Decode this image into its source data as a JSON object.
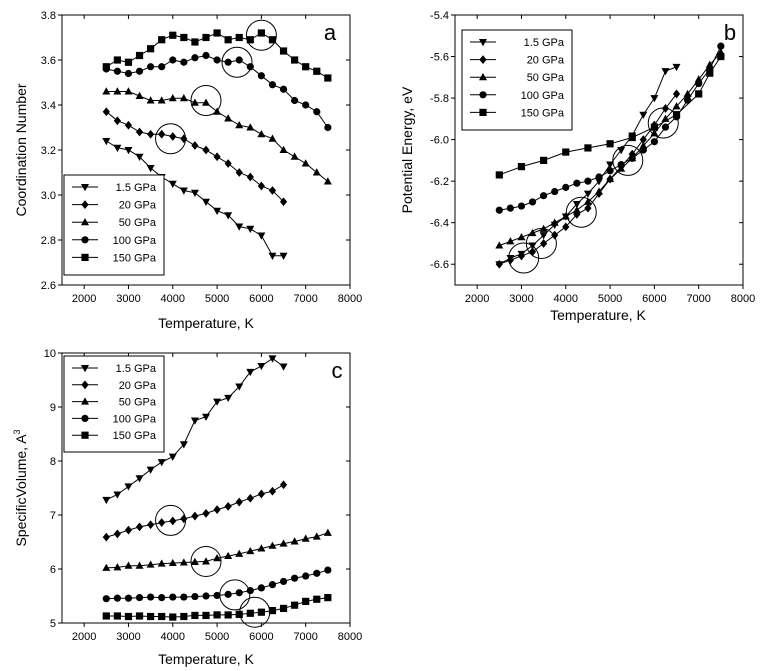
{
  "chart_data": [
    {
      "panel": "a",
      "type": "line",
      "xlabel": "Temperature, K",
      "ylabel": "Coordination Number",
      "xlim": [
        1500,
        8000
      ],
      "ylim": [
        2.6,
        3.8
      ],
      "xticks": [
        2000,
        3000,
        4000,
        5000,
        6000,
        7000,
        8000
      ],
      "yticks": [
        2.6,
        2.8,
        3.0,
        3.2,
        3.4,
        3.6,
        3.8
      ],
      "ytick_decimals": 1,
      "legend_position": "bottom-left",
      "series": [
        {
          "name": "1.5 GPa",
          "marker": "triangle-down",
          "x": [
            2500,
            2750,
            3000,
            3250,
            3500,
            3750,
            4000,
            4250,
            4500,
            4750,
            5000,
            5250,
            5500,
            5750,
            6000,
            6250,
            6500
          ],
          "y": [
            3.24,
            3.21,
            3.2,
            3.17,
            3.12,
            3.08,
            3.05,
            3.02,
            3.01,
            2.97,
            2.93,
            2.91,
            2.86,
            2.85,
            2.82,
            2.73,
            2.73
          ]
        },
        {
          "name": "20 GPa",
          "marker": "diamond",
          "x": [
            2500,
            2750,
            3000,
            3250,
            3500,
            3750,
            4000,
            4250,
            4500,
            4750,
            5000,
            5250,
            5500,
            5750,
            6000,
            6250,
            6500
          ],
          "y": [
            3.37,
            3.33,
            3.31,
            3.28,
            3.27,
            3.27,
            3.26,
            3.25,
            3.22,
            3.2,
            3.17,
            3.14,
            3.1,
            3.08,
            3.04,
            3.02,
            2.97
          ]
        },
        {
          "name": "50 GPa",
          "marker": "triangle-up",
          "x": [
            2500,
            2750,
            3000,
            3250,
            3500,
            3750,
            4000,
            4250,
            4500,
            4750,
            5000,
            5250,
            5500,
            5750,
            6000,
            6250,
            6500,
            6750,
            7000,
            7250,
            7500
          ],
          "y": [
            3.46,
            3.46,
            3.46,
            3.44,
            3.42,
            3.42,
            3.43,
            3.43,
            3.41,
            3.41,
            3.37,
            3.34,
            3.31,
            3.3,
            3.27,
            3.25,
            3.2,
            3.17,
            3.14,
            3.1,
            3.06
          ]
        },
        {
          "name": "100 GPa",
          "marker": "circle",
          "x": [
            2500,
            2750,
            3000,
            3250,
            3500,
            3750,
            4000,
            4250,
            4500,
            4750,
            5000,
            5250,
            5500,
            5750,
            6000,
            6250,
            6500,
            6750,
            7000,
            7250,
            7500
          ],
          "y": [
            3.56,
            3.55,
            3.54,
            3.55,
            3.57,
            3.57,
            3.6,
            3.59,
            3.61,
            3.62,
            3.6,
            3.59,
            3.6,
            3.57,
            3.53,
            3.49,
            3.47,
            3.42,
            3.4,
            3.37,
            3.3
          ]
        },
        {
          "name": "150 GPa",
          "marker": "square",
          "x": [
            2500,
            2750,
            3000,
            3250,
            3500,
            3750,
            4000,
            4250,
            4500,
            4750,
            5000,
            5250,
            5500,
            5750,
            6000,
            6250,
            6500,
            6750,
            7000,
            7250,
            7500
          ],
          "y": [
            3.57,
            3.6,
            3.59,
            3.62,
            3.65,
            3.69,
            3.71,
            3.7,
            3.68,
            3.7,
            3.72,
            3.69,
            3.7,
            3.69,
            3.72,
            3.69,
            3.64,
            3.6,
            3.57,
            3.55,
            3.52
          ]
        }
      ],
      "circled_points": [
        {
          "x": 3950,
          "y": 3.25
        },
        {
          "x": 4750,
          "y": 3.42
        },
        {
          "x": 5450,
          "y": 3.59
        },
        {
          "x": 6000,
          "y": 3.71
        }
      ]
    },
    {
      "panel": "b",
      "type": "line",
      "xlabel": "Temperature, K",
      "ylabel": "Potential Energy, eV",
      "xlim": [
        1500,
        8000
      ],
      "ylim": [
        -6.7,
        -5.4
      ],
      "xticks": [
        2000,
        3000,
        4000,
        5000,
        6000,
        7000,
        8000
      ],
      "yticks": [
        -6.6,
        -6.4,
        -6.2,
        -6.0,
        -5.8,
        -5.6,
        -5.4
      ],
      "ytick_decimals": 1,
      "legend_position": "top-left",
      "series": [
        {
          "name": "1.5 GPa",
          "marker": "triangle-down",
          "x": [
            2500,
            2750,
            3000,
            3250,
            3500,
            3750,
            4000,
            4250,
            4500,
            4750,
            5000,
            5250,
            5500,
            5750,
            6000,
            6250,
            6500
          ],
          "y": [
            -6.6,
            -6.57,
            -6.55,
            -6.51,
            -6.46,
            -6.41,
            -6.37,
            -6.31,
            -6.26,
            -6.2,
            -6.12,
            -6.05,
            -5.98,
            -5.88,
            -5.8,
            -5.67,
            -5.65
          ]
        },
        {
          "name": "20 GPa",
          "marker": "diamond",
          "x": [
            2500,
            2750,
            3000,
            3250,
            3500,
            3750,
            4000,
            4250,
            4500,
            4750,
            5000,
            5250,
            5500,
            5750,
            6000,
            6250,
            6500
          ],
          "y": [
            -6.6,
            -6.58,
            -6.56,
            -6.54,
            -6.5,
            -6.46,
            -6.42,
            -6.36,
            -6.33,
            -6.26,
            -6.19,
            -6.13,
            -6.07,
            -6.0,
            -5.93,
            -5.85,
            -5.78
          ]
        },
        {
          "name": "50 GPa",
          "marker": "triangle-up",
          "x": [
            2500,
            2750,
            3000,
            3250,
            3500,
            3750,
            4000,
            4250,
            4500,
            4750,
            5000,
            5250,
            5500,
            5750,
            6000,
            6250,
            6500,
            6750,
            7000,
            7250,
            7500
          ],
          "y": [
            -6.51,
            -6.49,
            -6.47,
            -6.45,
            -6.43,
            -6.4,
            -6.37,
            -6.34,
            -6.3,
            -6.25,
            -6.19,
            -6.14,
            -6.09,
            -6.03,
            -5.97,
            -5.9,
            -5.84,
            -5.78,
            -5.71,
            -5.64,
            -5.58
          ]
        },
        {
          "name": "100 GPa",
          "marker": "circle",
          "x": [
            2500,
            2750,
            3000,
            3250,
            3500,
            3750,
            4000,
            4250,
            4500,
            4750,
            5000,
            5250,
            5500,
            5750,
            6000,
            6250,
            6500,
            6750,
            7000,
            7250,
            7500
          ],
          "y": [
            -6.34,
            -6.33,
            -6.32,
            -6.3,
            -6.27,
            -6.25,
            -6.23,
            -6.21,
            -6.2,
            -6.18,
            -6.15,
            -6.12,
            -6.09,
            -6.05,
            -6.01,
            -5.94,
            -5.89,
            -5.81,
            -5.73,
            -5.66,
            -5.55
          ]
        },
        {
          "name": "150 GPa",
          "marker": "square",
          "x": [
            2500,
            3000,
            3500,
            4000,
            4500,
            5000,
            5500,
            6000,
            6500,
            7000,
            7250,
            7500
          ],
          "y": [
            -6.17,
            -6.13,
            -6.1,
            -6.06,
            -6.04,
            -6.02,
            -5.99,
            -5.94,
            -5.88,
            -5.78,
            -5.68,
            -5.6
          ]
        }
      ],
      "circled_points": [
        {
          "x": 3050,
          "y": -6.57
        },
        {
          "x": 3450,
          "y": -6.5
        },
        {
          "x": 4350,
          "y": -6.35
        },
        {
          "x": 5400,
          "y": -6.1
        },
        {
          "x": 6200,
          "y": -5.92
        }
      ]
    },
    {
      "panel": "c",
      "type": "line",
      "xlabel": "Temperature, K",
      "ylabel": "SpecificVolume, A",
      "ylabel_superscript": "3",
      "xlim": [
        1500,
        8000
      ],
      "ylim": [
        5,
        10
      ],
      "xticks": [
        2000,
        3000,
        4000,
        5000,
        6000,
        7000,
        8000
      ],
      "yticks": [
        5,
        6,
        7,
        8,
        9,
        10
      ],
      "ytick_decimals": 0,
      "legend_position": "top-left",
      "series": [
        {
          "name": "1.5 GPa",
          "marker": "triangle-down",
          "x": [
            2500,
            2750,
            3000,
            3250,
            3500,
            3750,
            4000,
            4250,
            4500,
            4750,
            5000,
            5250,
            5500,
            5750,
            6000,
            6250,
            6500
          ],
          "y": [
            7.28,
            7.38,
            7.53,
            7.68,
            7.84,
            7.98,
            8.08,
            8.31,
            8.75,
            8.82,
            9.1,
            9.17,
            9.38,
            9.65,
            9.76,
            9.9,
            9.75
          ]
        },
        {
          "name": "20 GPa",
          "marker": "diamond",
          "x": [
            2500,
            2750,
            3000,
            3250,
            3500,
            3750,
            4000,
            4250,
            4500,
            4750,
            5000,
            5250,
            5500,
            5750,
            6000,
            6250,
            6500
          ],
          "y": [
            6.59,
            6.65,
            6.72,
            6.78,
            6.82,
            6.86,
            6.89,
            6.93,
            6.98,
            7.03,
            7.1,
            7.16,
            7.24,
            7.31,
            7.39,
            7.44,
            7.56
          ]
        },
        {
          "name": "50 GPa",
          "marker": "triangle-up",
          "x": [
            2500,
            2750,
            3000,
            3250,
            3500,
            3750,
            4000,
            4250,
            4500,
            4750,
            5000,
            5250,
            5500,
            5750,
            6000,
            6250,
            6500,
            6750,
            7000,
            7250,
            7500
          ],
          "y": [
            6.02,
            6.03,
            6.06,
            6.06,
            6.08,
            6.1,
            6.11,
            6.12,
            6.13,
            6.14,
            6.2,
            6.24,
            6.28,
            6.33,
            6.38,
            6.43,
            6.47,
            6.51,
            6.56,
            6.6,
            6.67
          ]
        },
        {
          "name": "100 GPa",
          "marker": "circle",
          "x": [
            2500,
            2750,
            3000,
            3250,
            3500,
            3750,
            4000,
            4250,
            4500,
            4750,
            5000,
            5250,
            5500,
            5750,
            6000,
            6250,
            6500,
            6750,
            7000,
            7250,
            7500
          ],
          "y": [
            5.45,
            5.46,
            5.46,
            5.47,
            5.48,
            5.47,
            5.48,
            5.48,
            5.49,
            5.5,
            5.51,
            5.53,
            5.56,
            5.6,
            5.65,
            5.71,
            5.77,
            5.83,
            5.87,
            5.92,
            5.98
          ]
        },
        {
          "name": "150 GPa",
          "marker": "square",
          "x": [
            2500,
            2750,
            3000,
            3250,
            3500,
            3750,
            4000,
            4250,
            4500,
            4750,
            5000,
            5250,
            5500,
            5750,
            6000,
            6250,
            6500,
            6750,
            7000,
            7250,
            7500
          ],
          "y": [
            5.13,
            5.13,
            5.12,
            5.13,
            5.12,
            5.12,
            5.11,
            5.12,
            5.14,
            5.14,
            5.15,
            5.15,
            5.16,
            5.18,
            5.2,
            5.23,
            5.27,
            5.33,
            5.4,
            5.44,
            5.47
          ]
        }
      ],
      "circled_points": [
        {
          "x": 3950,
          "y": 6.9
        },
        {
          "x": 4750,
          "y": 6.14
        },
        {
          "x": 5400,
          "y": 5.52
        },
        {
          "x": 5850,
          "y": 5.2
        }
      ]
    }
  ]
}
